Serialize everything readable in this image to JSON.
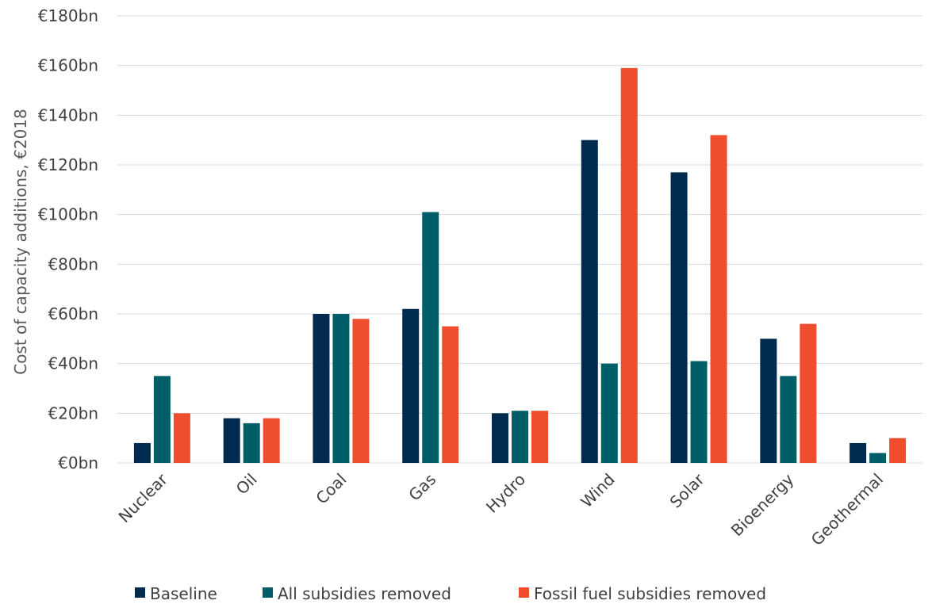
{
  "chart_data": {
    "type": "bar",
    "title": "",
    "xlabel": "",
    "ylabel": "Cost of capacity additions, €2018",
    "ylim": [
      0,
      180
    ],
    "yticks": [
      0,
      20,
      40,
      60,
      80,
      100,
      120,
      140,
      160,
      180
    ],
    "ytick_labels": [
      "€0bn",
      "€20bn",
      "€40bn",
      "€60bn",
      "€80bn",
      "€100bn",
      "€120bn",
      "€140bn",
      "€160bn",
      "€180bn"
    ],
    "grid": true,
    "legend_position": "bottom",
    "categories": [
      "Nuclear",
      "Oil",
      "Coal",
      "Gas",
      "Hydro",
      "Wind",
      "Solar",
      "Bioenergy",
      "Geothermal"
    ],
    "series": [
      {
        "name": "Baseline",
        "color": "#002b4f",
        "values": [
          8,
          18,
          60,
          62,
          20,
          130,
          117,
          50,
          8
        ]
      },
      {
        "name": "All subsidies removed",
        "color": "#005e69",
        "values": [
          35,
          16,
          60,
          101,
          21,
          40,
          41,
          35,
          4
        ]
      },
      {
        "name": "Fossil fuel subsidies removed",
        "color": "#f04d2f",
        "values": [
          20,
          18,
          58,
          55,
          21,
          159,
          132,
          56,
          10
        ]
      }
    ]
  }
}
